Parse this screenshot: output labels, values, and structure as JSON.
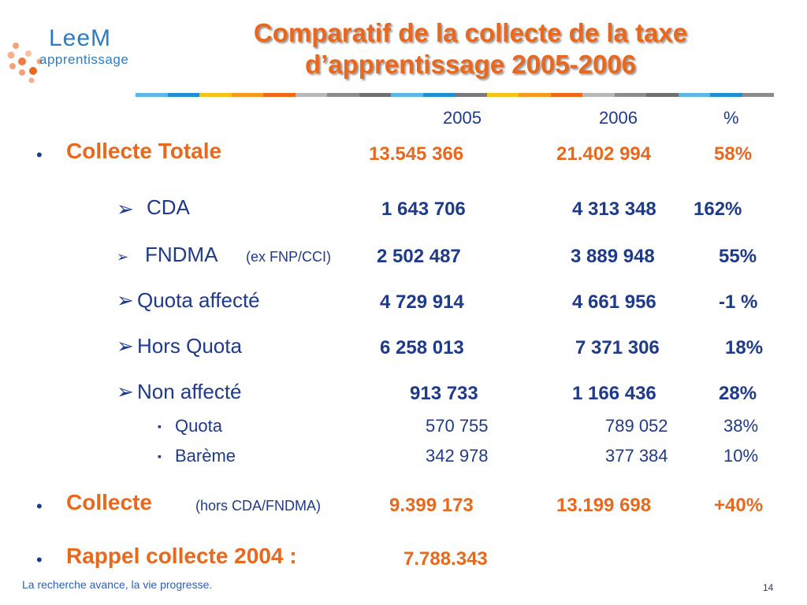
{
  "logo": {
    "word": "LeeM",
    "sub": "apprentissage"
  },
  "title": {
    "line1": "Comparatif de la collecte de la taxe",
    "line2": "d’apprentissage 2005-2006"
  },
  "colors": {
    "accent": "#e8681e",
    "text": "#1e3a8a",
    "bar": [
      "#5bb8e6",
      "#1f8fd4",
      "#f7c21a",
      "#f39a1f",
      "#ee6a17",
      "#b8b8b8",
      "#8c8c8c",
      "#707070",
      "#5bb8e6",
      "#1f8fd4",
      "#7a7a7a",
      "#f7c21a",
      "#f39a1f",
      "#ee6a17",
      "#b8b8b8",
      "#8c8c8c",
      "#707070",
      "#5bb8e6",
      "#1f8fd4",
      "#8c8c8c"
    ]
  },
  "header": {
    "y2005": "2005",
    "y2006": "2006",
    "pct": "%"
  },
  "rows": {
    "total": {
      "bullet": "•",
      "label": "Collecte Totale",
      "v2005": "13.545 366",
      "v2006": "21.402 994",
      "pct": "58%"
    },
    "cda": {
      "marker": "➢",
      "label": "CDA",
      "v2005": "1 643 706",
      "v2006": "4 313 348",
      "pct": "162%"
    },
    "fndma": {
      "marker": "➢",
      "label": "FNDMA",
      "note": "(ex FNP/CCI)",
      "v2005": "2 502 487",
      "v2006": "3 889 948",
      "pct": "55%"
    },
    "quota_affecte": {
      "marker": "➢",
      "label": "Quota affecté",
      "v2005": "4 729 914",
      "v2006": "4 661 956",
      "pct": "-1 %"
    },
    "hors_quota": {
      "marker": "➢",
      "label": "Hors Quota",
      "v2005": "6 258 013",
      "v2006": "7 371 306",
      "pct": "18%"
    },
    "non_affecte": {
      "marker": "➢",
      "label": "Non affecté",
      "v2005": "913 733",
      "v2006": "1 166 436",
      "pct": "28%"
    },
    "quota": {
      "marker": "▪",
      "label": "Quota",
      "v2005": "570 755",
      "v2006": "789 052",
      "pct": "38%"
    },
    "bareme": {
      "marker": "▪",
      "label": "Barème",
      "v2005": "342 978",
      "v2006": "377 384",
      "pct": "10%"
    },
    "collecte": {
      "bullet": "•",
      "label": "Collecte",
      "note": "(hors CDA/FNDMA)",
      "v2005": "9.399 173",
      "v2006": "13.199 698",
      "pct": "+40%"
    },
    "rappel": {
      "bullet": "•",
      "label": "Rappel collecte 2004 :",
      "value": "7.788.343"
    }
  },
  "footer": {
    "tagline": "La recherche avance, la vie progresse.",
    "page": "14"
  }
}
